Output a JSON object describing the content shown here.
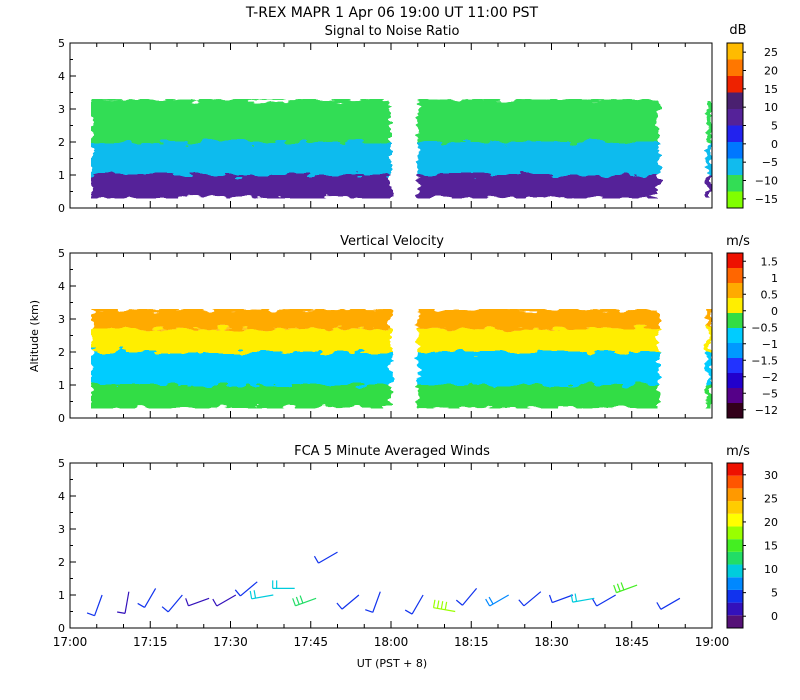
{
  "header": {
    "title": "T-REX  MAPR  1 Apr 06  19:00 UT  11:00  PST"
  },
  "chart_data": [
    {
      "type": "heatmap",
      "title": "Signal to Noise Ratio",
      "units": "dB",
      "ylim": [
        0,
        5
      ],
      "yticks": [
        "0",
        "1",
        "2",
        "3",
        "4",
        "5"
      ],
      "xlim": [
        1020,
        1140
      ],
      "colorbar": {
        "colors": [
          "#80ff00",
          "#33dd55",
          "#11bbee",
          "#0077ff",
          "#2222ee",
          "#552299",
          "#4a2070",
          "#ee2200",
          "#ff7700",
          "#ffbb00"
        ],
        "labels": [
          "−15",
          "−10",
          "−5",
          "0",
          "5",
          "10",
          "15",
          "20",
          "25"
        ]
      },
      "data_segments": [
        [
          1020,
          1080
        ],
        [
          1085,
          1130
        ],
        [
          1139,
          1140
        ]
      ],
      "echo_top_km": 3.3,
      "levels": [
        {
          "name": "surface",
          "km": [
            0.3,
            1.0
          ],
          "value_db": 8
        },
        {
          "name": "lower",
          "km": [
            1.0,
            2.0
          ],
          "value_db": -3
        },
        {
          "name": "middle",
          "km": [
            2.0,
            3.0
          ],
          "value_db": -8
        },
        {
          "name": "top",
          "km": [
            3.0,
            3.3
          ],
          "value_db": -12
        }
      ]
    },
    {
      "type": "heatmap",
      "title": "Vertical Velocity",
      "units": "m/s",
      "ylabel": "Altitude (km)",
      "ylim": [
        0,
        5
      ],
      "yticks": [
        "0",
        "1",
        "2",
        "3",
        "4",
        "5"
      ],
      "xlim": [
        1020,
        1140
      ],
      "colorbar": {
        "colors": [
          "#33001a",
          "#550088",
          "#2200cc",
          "#2233ff",
          "#0099ff",
          "#00ccff",
          "#33dd44",
          "#ffee00",
          "#ffaa00",
          "#ff6600",
          "#ee1100"
        ],
        "labels": [
          "−12",
          "−5",
          "−2",
          "−1.5",
          "−1",
          "−0.5",
          "0",
          "0.5",
          "1",
          "1.5"
        ]
      },
      "data_segments": [
        [
          1020,
          1080
        ],
        [
          1085,
          1130
        ],
        [
          1139,
          1140
        ]
      ],
      "echo_top_km": 3.3,
      "levels": [
        {
          "name": "top",
          "km": [
            2.7,
            3.3
          ],
          "value_ms": 1.0
        },
        {
          "name": "upper",
          "km": [
            2.0,
            2.7
          ],
          "value_ms": 0.3
        },
        {
          "name": "middle",
          "km": [
            1.0,
            2.0
          ],
          "value_ms": -0.3
        },
        {
          "name": "lower",
          "km": [
            0.3,
            1.0
          ],
          "value_ms": 0.0
        }
      ]
    },
    {
      "type": "wind_barbs",
      "title": "FCA 5 Minute Averaged Winds",
      "units": "m/s",
      "ylim": [
        0,
        5
      ],
      "yticks": [
        "0",
        "1",
        "2",
        "3",
        "4",
        "5"
      ],
      "xlim": [
        1020,
        1140
      ],
      "xticks": [
        "17:00",
        "17:15",
        "17:30",
        "17:45",
        "18:00",
        "18:15",
        "18:30",
        "18:45",
        "19:00"
      ],
      "xlabel": "UT  (PST + 8)",
      "colorbar": {
        "colors": [
          "#551177",
          "#3311bb",
          "#1133ee",
          "#0088ff",
          "#00ccdd",
          "#22dd66",
          "#44ee22",
          "#99ff00",
          "#ffff00",
          "#ffcc00",
          "#ff9900",
          "#ff5500",
          "#ee1100"
        ],
        "labels": [
          "0",
          "5",
          "10",
          "15",
          "20",
          "25",
          "30"
        ]
      },
      "barbs": [
        {
          "t": 1026,
          "alt": 1.0,
          "dir": 200,
          "spd": 6
        },
        {
          "t": 1031,
          "alt": 1.1,
          "dir": 190,
          "spd": 4
        },
        {
          "t": 1036,
          "alt": 1.2,
          "dir": 210,
          "spd": 5
        },
        {
          "t": 1041,
          "alt": 1.0,
          "dir": 220,
          "spd": 6
        },
        {
          "t": 1046,
          "alt": 0.9,
          "dir": 250,
          "spd": 4
        },
        {
          "t": 1051,
          "alt": 1.0,
          "dir": 240,
          "spd": 3
        },
        {
          "t": 1055,
          "alt": 1.4,
          "dir": 230,
          "spd": 7
        },
        {
          "t": 1058,
          "alt": 1.0,
          "dir": 260,
          "spd": 10
        },
        {
          "t": 1062,
          "alt": 1.2,
          "dir": 270,
          "spd": 12
        },
        {
          "t": 1066,
          "alt": 0.9,
          "dir": 250,
          "spd": 13
        },
        {
          "t": 1070,
          "alt": 2.3,
          "dir": 240,
          "spd": 7
        },
        {
          "t": 1074,
          "alt": 1.0,
          "dir": 230,
          "spd": 5
        },
        {
          "t": 1078,
          "alt": 1.1,
          "dir": 200,
          "spd": 6
        },
        {
          "t": 1086,
          "alt": 1.0,
          "dir": 210,
          "spd": 6
        },
        {
          "t": 1092,
          "alt": 0.5,
          "dir": 280,
          "spd": 18
        },
        {
          "t": 1096,
          "alt": 1.2,
          "dir": 220,
          "spd": 5
        },
        {
          "t": 1102,
          "alt": 1.0,
          "dir": 240,
          "spd": 9
        },
        {
          "t": 1108,
          "alt": 1.1,
          "dir": 230,
          "spd": 6
        },
        {
          "t": 1114,
          "alt": 1.0,
          "dir": 250,
          "spd": 7
        },
        {
          "t": 1118,
          "alt": 0.9,
          "dir": 260,
          "spd": 11
        },
        {
          "t": 1122,
          "alt": 1.0,
          "dir": 240,
          "spd": 6
        },
        {
          "t": 1126,
          "alt": 1.3,
          "dir": 250,
          "spd": 16
        },
        {
          "t": 1134,
          "alt": 0.9,
          "dir": 240,
          "spd": 5
        }
      ]
    }
  ]
}
